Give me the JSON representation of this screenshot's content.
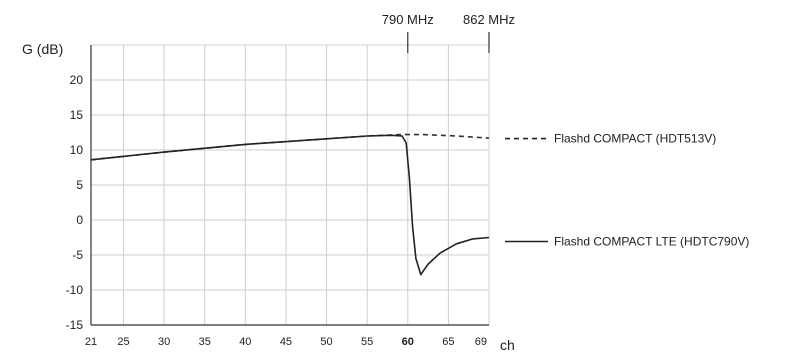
{
  "chart_data": {
    "type": "line",
    "ylabel": "G (dB)",
    "xlabel": "ch",
    "ylim": [
      -15,
      25
    ],
    "xlim": [
      21,
      70
    ],
    "yticks": [
      -15,
      -10,
      -5,
      0,
      5,
      10,
      15,
      20
    ],
    "xticks": [
      {
        "value": 21,
        "label": "21",
        "bold": false
      },
      {
        "value": 25,
        "label": "25",
        "bold": false
      },
      {
        "value": 30,
        "label": "30",
        "bold": false
      },
      {
        "value": 35,
        "label": "35",
        "bold": false
      },
      {
        "value": 40,
        "label": "40",
        "bold": false
      },
      {
        "value": 45,
        "label": "45",
        "bold": false
      },
      {
        "value": 50,
        "label": "50",
        "bold": false
      },
      {
        "value": 55,
        "label": "55",
        "bold": false
      },
      {
        "value": 60,
        "label": "60",
        "bold": true
      },
      {
        "value": 65,
        "label": "65",
        "bold": false
      },
      {
        "value": 69,
        "label": "69",
        "bold": false
      }
    ],
    "x_gridlines": [
      25,
      30,
      35,
      40,
      45,
      50,
      55,
      60,
      65,
      70
    ],
    "grid": true,
    "freq_markers": [
      {
        "x": 60,
        "label": "790 MHz"
      },
      {
        "x": 70,
        "label": "862 MHz"
      }
    ],
    "series": [
      {
        "name": "Flashd COMPACT (HDT513V)",
        "style": "dashed",
        "color": "#333333",
        "x": [
          21,
          30,
          40,
          50,
          55,
          59,
          62,
          66,
          70
        ],
        "y": [
          8.6,
          9.7,
          10.8,
          11.6,
          12.0,
          12.2,
          12.2,
          12.0,
          11.7
        ]
      },
      {
        "name": "Flashd COMPACT LTE (HDTC790V)",
        "style": "solid",
        "color": "#222222",
        "x": [
          21,
          30,
          40,
          50,
          55,
          58,
          59.3,
          59.8,
          60.2,
          60.6,
          61.0,
          61.6,
          62.5,
          64,
          66,
          68,
          70
        ],
        "y": [
          8.6,
          9.7,
          10.8,
          11.6,
          12.0,
          12.1,
          12.0,
          11.0,
          6.0,
          -1.0,
          -5.5,
          -7.8,
          -6.3,
          -4.7,
          -3.4,
          -2.7,
          -2.5
        ]
      }
    ],
    "legend": [
      {
        "label": "Flashd COMPACT (HDT513V)",
        "style": "dashed",
        "y": 12.2
      },
      {
        "label": "Flashd COMPACT LTE (HDTC790V)",
        "style": "solid",
        "y": -2.5
      }
    ]
  }
}
